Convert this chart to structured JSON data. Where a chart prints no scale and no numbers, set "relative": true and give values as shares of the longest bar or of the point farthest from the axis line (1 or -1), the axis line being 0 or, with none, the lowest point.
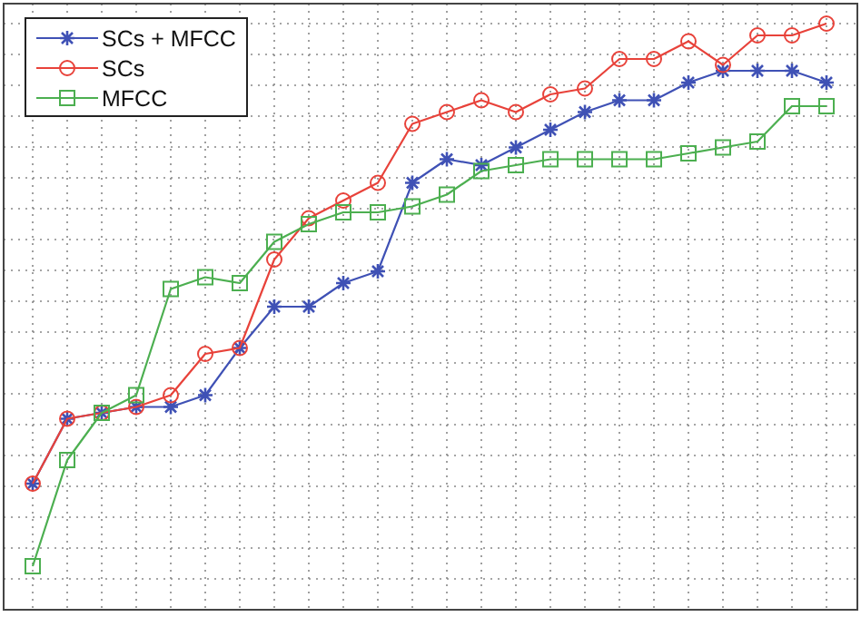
{
  "chart_data": {
    "type": "line",
    "relative": true,
    "grid": true,
    "legend": "top left",
    "categories": [
      null,
      null,
      null,
      null,
      null,
      null,
      null,
      null,
      null,
      null,
      null,
      null,
      null,
      null,
      null,
      null,
      null,
      null,
      null,
      null,
      null,
      null,
      null,
      null
    ],
    "series": [
      {
        "name": "SCs + MFCC",
        "color": "#3f51b5",
        "marker": "cross",
        "values": [
          0.22,
          0.33,
          0.34,
          0.35,
          0.35,
          0.37,
          0.45,
          0.52,
          0.52,
          0.56,
          0.58,
          0.73,
          0.77,
          0.76,
          0.79,
          0.82,
          0.85,
          0.87,
          0.87,
          0.9,
          0.92,
          0.92,
          0.92,
          0.9
        ]
      },
      {
        "name": "SCs",
        "color": "#e8423a",
        "marker": "circle",
        "values": [
          0.22,
          0.33,
          0.34,
          0.35,
          0.37,
          0.44,
          0.45,
          0.6,
          0.67,
          0.7,
          0.73,
          0.83,
          0.85,
          0.87,
          0.85,
          0.88,
          0.89,
          0.94,
          0.94,
          0.97,
          0.93,
          0.98,
          0.98,
          1
        ]
      },
      {
        "name": "MFCC",
        "color": "#4caf50",
        "marker": "square",
        "values": [
          0.08,
          0.26,
          0.34,
          0.37,
          0.55,
          0.57,
          0.56,
          0.63,
          0.66,
          0.68,
          0.68,
          0.69,
          0.71,
          0.75,
          0.76,
          0.77,
          0.77,
          0.77,
          0.77,
          0.78,
          0.79,
          0.8,
          0.86,
          0.86
        ]
      }
    ]
  }
}
